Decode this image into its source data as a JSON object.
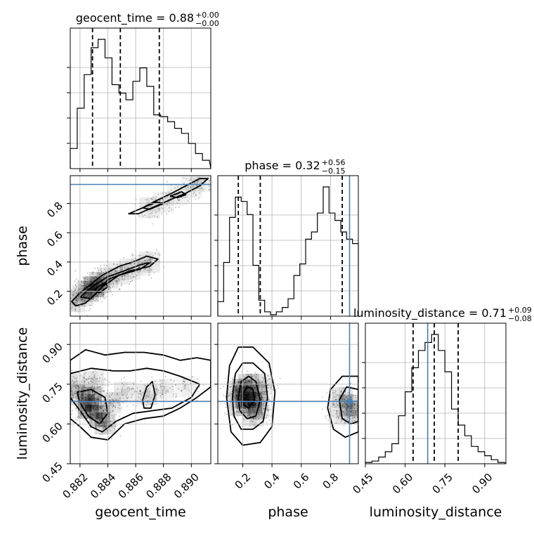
{
  "chart_data": {
    "type": "corner",
    "parameters": [
      "geocent_time",
      "phase",
      "luminosity_distance"
    ],
    "titles": [
      {
        "label": "geocent_time = 0.88",
        "plus": "+0.00",
        "minus": "−0.00"
      },
      {
        "label": "phase = 0.32",
        "plus": "+0.56",
        "minus": "−0.15"
      },
      {
        "label": "luminosity_distance = 0.71",
        "plus": "+0.09",
        "minus": "−0.08"
      }
    ],
    "axes": {
      "geocent_time": {
        "range": [
          0.8813,
          0.8914
        ],
        "ticks": [
          0.882,
          0.884,
          0.886,
          0.888,
          0.89
        ],
        "tick_labels": [
          "0.882",
          "0.884",
          "0.886",
          "0.888",
          "0.890"
        ]
      },
      "phase": {
        "range": [
          0.03,
          0.99
        ],
        "ticks": [
          0.2,
          0.4,
          0.6,
          0.8
        ],
        "tick_labels": [
          "0.2",
          "0.4",
          "0.6",
          "0.8"
        ]
      },
      "luminosity_distance": {
        "range": [
          0.45,
          0.98
        ],
        "ticks": [
          0.45,
          0.6,
          0.75,
          0.9
        ],
        "tick_labels": [
          "0.45",
          "0.60",
          "0.75",
          "0.90"
        ]
      }
    },
    "truth": {
      "geocent_time": null,
      "phase": 0.93,
      "luminosity_distance": 0.685
    },
    "quantiles": {
      "geocent_time": [
        0.8829,
        0.8849,
        0.8877
      ],
      "phase": [
        0.17,
        0.32,
        0.88
      ],
      "luminosity_distance": [
        0.63,
        0.71,
        0.8
      ]
    },
    "histograms": {
      "geocent_time": {
        "edges_start": 0.8813,
        "bin_width": 0.0005,
        "counts": [
          0.12,
          0.36,
          0.56,
          0.72,
          0.77,
          0.66,
          0.5,
          0.45,
          0.41,
          0.52,
          0.6,
          0.49,
          0.32,
          0.31,
          0.28,
          0.24,
          0.21,
          0.15,
          0.09,
          0.05
        ]
      },
      "phase": {
        "edges_start": 0.03,
        "bin_width": 0.04,
        "counts": [
          0.1,
          0.37,
          0.68,
          0.82,
          0.79,
          0.7,
          0.35,
          0.11,
          0.03,
          0.01,
          0.03,
          0.06,
          0.12,
          0.28,
          0.36,
          0.53,
          0.58,
          0.71,
          0.89,
          0.71,
          0.66,
          0.58,
          0.53,
          0.5
        ]
      },
      "luminosity_distance": {
        "edges_start": 0.45,
        "bin_width": 0.025,
        "counts": [
          0.01,
          0.02,
          0.05,
          0.09,
          0.15,
          0.36,
          0.54,
          0.72,
          0.85,
          0.91,
          0.97,
          0.85,
          0.69,
          0.41,
          0.29,
          0.21,
          0.13,
          0.09,
          0.06,
          0.03,
          0.01
        ]
      }
    },
    "contours": {
      "phase_vs_geocent_time": [
        {
          "level": 1,
          "points": [
            [
              0.8814,
              0.13
            ],
            [
              0.882,
              0.19
            ],
            [
              0.8828,
              0.25
            ],
            [
              0.8836,
              0.31
            ],
            [
              0.8848,
              0.37
            ],
            [
              0.8858,
              0.4
            ],
            [
              0.8868,
              0.44
            ],
            [
              0.8876,
              0.42
            ],
            [
              0.887,
              0.37
            ],
            [
              0.8856,
              0.34
            ],
            [
              0.884,
              0.28
            ],
            [
              0.8832,
              0.19
            ],
            [
              0.8824,
              0.12
            ],
            [
              0.8817,
              0.1
            ]
          ]
        },
        {
          "level": 2,
          "points": [
            [
              0.882,
              0.16
            ],
            [
              0.883,
              0.24
            ],
            [
              0.884,
              0.3
            ],
            [
              0.8852,
              0.34
            ],
            [
              0.8863,
              0.38
            ],
            [
              0.8871,
              0.4
            ],
            [
              0.8863,
              0.35
            ],
            [
              0.8848,
              0.31
            ],
            [
              0.8836,
              0.23
            ],
            [
              0.8828,
              0.15
            ]
          ]
        },
        {
          "level": 3,
          "points": [
            [
              0.883,
              0.21
            ],
            [
              0.8838,
              0.26
            ],
            [
              0.884,
              0.23
            ],
            [
              0.8834,
              0.19
            ]
          ]
        },
        {
          "level": 1,
          "points": [
            [
              0.8855,
              0.73
            ],
            [
              0.8865,
              0.77
            ],
            [
              0.8875,
              0.82
            ],
            [
              0.8886,
              0.87
            ],
            [
              0.8896,
              0.92
            ],
            [
              0.8906,
              0.97
            ],
            [
              0.8912,
              0.97
            ],
            [
              0.8906,
              0.92
            ],
            [
              0.8896,
              0.87
            ],
            [
              0.8886,
              0.83
            ],
            [
              0.8874,
              0.78
            ],
            [
              0.8862,
              0.73
            ]
          ]
        },
        {
          "level": 2,
          "points": [
            [
              0.8865,
              0.77
            ],
            [
              0.8875,
              0.81
            ],
            [
              0.888,
              0.8
            ],
            [
              0.887,
              0.76
            ]
          ]
        },
        {
          "level": 2,
          "points": [
            [
              0.8885,
              0.85
            ],
            [
              0.8893,
              0.88
            ],
            [
              0.8896,
              0.86
            ],
            [
              0.889,
              0.84
            ]
          ]
        }
      ],
      "luminosity_distance_vs_geocent_time": [
        {
          "level": 1,
          "points": [
            [
              0.8813,
              0.84
            ],
            [
              0.8824,
              0.88
            ],
            [
              0.8838,
              0.86
            ],
            [
              0.8852,
              0.87
            ],
            [
              0.8866,
              0.87
            ],
            [
              0.888,
              0.86
            ],
            [
              0.8892,
              0.84
            ],
            [
              0.8904,
              0.85
            ],
            [
              0.8914,
              0.84
            ],
            [
              0.8914,
              0.74
            ],
            [
              0.8904,
              0.7
            ],
            [
              0.8892,
              0.66
            ],
            [
              0.888,
              0.63
            ],
            [
              0.8866,
              0.62
            ],
            [
              0.8852,
              0.6
            ],
            [
              0.884,
              0.54
            ],
            [
              0.8828,
              0.55
            ],
            [
              0.882,
              0.59
            ],
            [
              0.8813,
              0.62
            ]
          ]
        },
        {
          "level": 2,
          "points": [
            [
              0.8813,
              0.79
            ],
            [
              0.8828,
              0.81
            ],
            [
              0.8844,
              0.8
            ],
            [
              0.8856,
              0.8
            ],
            [
              0.8868,
              0.81
            ],
            [
              0.888,
              0.8
            ],
            [
              0.8892,
              0.78
            ],
            [
              0.8906,
              0.75
            ],
            [
              0.89,
              0.7
            ],
            [
              0.8886,
              0.66
            ],
            [
              0.8872,
              0.65
            ],
            [
              0.8858,
              0.64
            ],
            [
              0.8846,
              0.61
            ],
            [
              0.8836,
              0.57
            ],
            [
              0.8828,
              0.59
            ],
            [
              0.882,
              0.65
            ],
            [
              0.8813,
              0.7
            ]
          ]
        },
        {
          "level": 3,
          "points": [
            [
              0.8818,
              0.72
            ],
            [
              0.8828,
              0.73
            ],
            [
              0.8838,
              0.7
            ],
            [
              0.884,
              0.64
            ],
            [
              0.8834,
              0.6
            ],
            [
              0.8826,
              0.63
            ],
            [
              0.882,
              0.68
            ]
          ]
        },
        {
          "level": 3,
          "points": [
            [
              0.8865,
              0.69
            ],
            [
              0.8868,
              0.74
            ],
            [
              0.8872,
              0.76
            ],
            [
              0.8874,
              0.71
            ],
            [
              0.8871,
              0.66
            ],
            [
              0.8866,
              0.66
            ]
          ]
        }
      ],
      "luminosity_distance_vs_phase": [
        {
          "level": 1,
          "points": [
            [
              0.09,
              0.7
            ],
            [
              0.11,
              0.82
            ],
            [
              0.17,
              0.89
            ],
            [
              0.27,
              0.89
            ],
            [
              0.38,
              0.83
            ],
            [
              0.42,
              0.72
            ],
            [
              0.4,
              0.59
            ],
            [
              0.32,
              0.53
            ],
            [
              0.2,
              0.52
            ],
            [
              0.12,
              0.57
            ]
          ]
        },
        {
          "level": 2,
          "points": [
            [
              0.13,
              0.7
            ],
            [
              0.15,
              0.79
            ],
            [
              0.2,
              0.83
            ],
            [
              0.27,
              0.83
            ],
            [
              0.35,
              0.79
            ],
            [
              0.37,
              0.7
            ],
            [
              0.34,
              0.61
            ],
            [
              0.27,
              0.58
            ],
            [
              0.19,
              0.58
            ],
            [
              0.14,
              0.63
            ]
          ]
        },
        {
          "level": 3,
          "points": [
            [
              0.17,
              0.7
            ],
            [
              0.19,
              0.76
            ],
            [
              0.24,
              0.78
            ],
            [
              0.29,
              0.76
            ],
            [
              0.32,
              0.69
            ],
            [
              0.29,
              0.63
            ],
            [
              0.23,
              0.62
            ],
            [
              0.18,
              0.65
            ]
          ]
        },
        {
          "level": 4,
          "points": [
            [
              0.2,
              0.71
            ],
            [
              0.23,
              0.74
            ],
            [
              0.27,
              0.73
            ],
            [
              0.28,
              0.69
            ],
            [
              0.24,
              0.66
            ],
            [
              0.21,
              0.67
            ]
          ]
        },
        {
          "level": 1,
          "points": [
            [
              0.99,
              0.78
            ],
            [
              0.88,
              0.78
            ],
            [
              0.8,
              0.73
            ],
            [
              0.78,
              0.66
            ],
            [
              0.82,
              0.58
            ],
            [
              0.9,
              0.55
            ],
            [
              0.99,
              0.57
            ]
          ]
        },
        {
          "level": 2,
          "points": [
            [
              0.99,
              0.73
            ],
            [
              0.91,
              0.74
            ],
            [
              0.86,
              0.69
            ],
            [
              0.88,
              0.62
            ],
            [
              0.94,
              0.6
            ],
            [
              0.99,
              0.61
            ]
          ]
        }
      ]
    },
    "density": {
      "phase_vs_geocent_time": [
        [
          0.883,
          0.23,
          1.0
        ],
        [
          0.8826,
          0.2,
          0.55
        ],
        [
          0.8834,
          0.26,
          0.55
        ],
        [
          0.8822,
          0.17,
          0.4
        ],
        [
          0.884,
          0.29,
          0.35
        ],
        [
          0.8848,
          0.32,
          0.3
        ],
        [
          0.8856,
          0.35,
          0.25
        ],
        [
          0.8864,
          0.38,
          0.2
        ],
        [
          0.887,
          0.4,
          0.25
        ],
        [
          0.8816,
          0.13,
          0.3
        ],
        [
          0.887,
          0.77,
          0.25
        ],
        [
          0.888,
          0.81,
          0.2
        ],
        [
          0.889,
          0.86,
          0.2
        ],
        [
          0.89,
          0.91,
          0.2
        ],
        [
          0.8908,
          0.95,
          0.2
        ]
      ],
      "luminosity_distance_vs_geocent_time": [
        [
          0.8826,
          0.66,
          1.0
        ],
        [
          0.8828,
          0.7,
          0.8
        ],
        [
          0.8834,
          0.63,
          0.8
        ],
        [
          0.882,
          0.71,
          0.5
        ],
        [
          0.8838,
          0.6,
          0.5
        ],
        [
          0.8842,
          0.68,
          0.35
        ],
        [
          0.8852,
          0.72,
          0.25
        ],
        [
          0.8868,
          0.71,
          0.3
        ],
        [
          0.888,
          0.73,
          0.2
        ],
        [
          0.8896,
          0.74,
          0.15
        ],
        [
          0.8816,
          0.75,
          0.3
        ],
        [
          0.883,
          0.76,
          0.3
        ]
      ],
      "luminosity_distance_vs_phase": [
        [
          0.22,
          0.7,
          1.0
        ],
        [
          0.26,
          0.68,
          0.9
        ],
        [
          0.2,
          0.73,
          0.7
        ],
        [
          0.29,
          0.71,
          0.6
        ],
        [
          0.24,
          0.75,
          0.55
        ],
        [
          0.18,
          0.67,
          0.45
        ],
        [
          0.31,
          0.66,
          0.4
        ],
        [
          0.16,
          0.72,
          0.35
        ],
        [
          0.27,
          0.63,
          0.4
        ],
        [
          0.33,
          0.75,
          0.3
        ],
        [
          0.93,
          0.67,
          0.55
        ],
        [
          0.88,
          0.7,
          0.4
        ],
        [
          0.96,
          0.64,
          0.4
        ],
        [
          0.86,
          0.64,
          0.25
        ]
      ]
    }
  }
}
